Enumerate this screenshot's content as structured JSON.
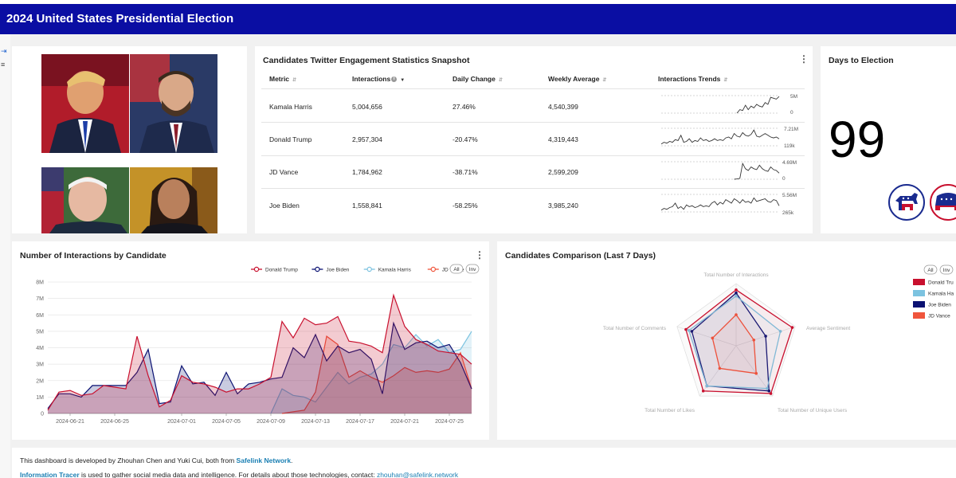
{
  "header": {
    "title": "2024 United States Presidential Election"
  },
  "engagement": {
    "title": "Candidates Twitter Engagement Statistics Snapshot",
    "columns": [
      "Metric",
      "Interactions",
      "Daily Change",
      "Weekly Average",
      "Interactions Trends"
    ],
    "rows": [
      {
        "metric": "Kamala Harris",
        "interactions": "5,004,656",
        "daily_change": "27.46%",
        "weekly_average": "4,540,399",
        "spark_max": "5M",
        "spark_min": "0",
        "trend": [
          0,
          0,
          0,
          0,
          0,
          0,
          0,
          0,
          0,
          0,
          0,
          0,
          0,
          0,
          0,
          0,
          0,
          0,
          0,
          0,
          0,
          0,
          0,
          0,
          0,
          0,
          0,
          0,
          0.2,
          0.15,
          0.45,
          0.2,
          0.4,
          0.3,
          0.5,
          0.4,
          0.35,
          0.6,
          0.5,
          0.9,
          0.85,
          0.8,
          0.95
        ]
      },
      {
        "metric": "Donald Trump",
        "interactions": "2,957,304",
        "daily_change": "-20.47%",
        "weekly_average": "4,319,443",
        "spark_max": "7.21M",
        "spark_min": "119k",
        "trend": [
          0.1,
          0.2,
          0.15,
          0.25,
          0.2,
          0.35,
          0.3,
          0.6,
          0.2,
          0.25,
          0.4,
          0.2,
          0.3,
          0.25,
          0.45,
          0.3,
          0.35,
          0.25,
          0.3,
          0.4,
          0.3,
          0.35,
          0.3,
          0.45,
          0.5,
          0.4,
          0.7,
          0.55,
          0.5,
          0.75,
          0.6,
          0.55,
          0.65,
          0.9,
          0.55,
          0.5,
          0.6,
          0.7,
          0.6,
          0.5,
          0.45,
          0.5,
          0.4
        ]
      },
      {
        "metric": "JD Vance",
        "interactions": "1,784,962",
        "daily_change": "-38.71%",
        "weekly_average": "2,599,209",
        "spark_max": "4.69M",
        "spark_min": "0",
        "trend": [
          0,
          0,
          0,
          0,
          0,
          0,
          0,
          0,
          0,
          0,
          0,
          0,
          0,
          0,
          0,
          0,
          0,
          0,
          0,
          0,
          0,
          0,
          0,
          0,
          0,
          0,
          0,
          0.02,
          0.05,
          0.9,
          0.6,
          0.5,
          0.7,
          0.6,
          0.55,
          0.8,
          0.6,
          0.5,
          0.45,
          0.7,
          0.55,
          0.5,
          0.35
        ]
      },
      {
        "metric": "Joe Biden",
        "interactions": "1,558,841",
        "daily_change": "-58.25%",
        "weekly_average": "3,985,240",
        "spark_max": "5.56M",
        "spark_min": "265k",
        "trend": [
          0.1,
          0.2,
          0.15,
          0.25,
          0.3,
          0.5,
          0.2,
          0.3,
          0.15,
          0.4,
          0.3,
          0.35,
          0.25,
          0.3,
          0.4,
          0.3,
          0.35,
          0.3,
          0.5,
          0.6,
          0.4,
          0.55,
          0.45,
          0.7,
          0.6,
          0.5,
          0.75,
          0.65,
          0.5,
          0.7,
          0.55,
          0.6,
          0.5,
          0.8,
          0.6,
          0.65,
          0.7,
          0.75,
          0.6,
          0.55,
          0.7,
          0.65,
          0.35
        ]
      }
    ]
  },
  "days": {
    "title": "Days to Election",
    "value": "99"
  },
  "line_chart": {
    "title": "Number of Interactions by Candidate",
    "legend_all": "All",
    "legend_inv": "Inv",
    "colors": {
      "Donald Trump": "#c8102e",
      "Joe Biden": "#0a1172",
      "Kamala Harris": "#7cc3e0",
      "JD Vance": "#f0553c"
    }
  },
  "radar_chart": {
    "title": "Candidates Comparison (Last 7 Days)",
    "legend_all": "All",
    "legend_inv": "Inv"
  },
  "chart_data": [
    {
      "type": "area",
      "title": "Number of Interactions by Candidate",
      "x": [
        "2024-06-19",
        "2024-06-20",
        "2024-06-21",
        "2024-06-22",
        "2024-06-23",
        "2024-06-24",
        "2024-06-25",
        "2024-06-26",
        "2024-06-27",
        "2024-06-28",
        "2024-06-29",
        "2024-06-30",
        "2024-07-01",
        "2024-07-02",
        "2024-07-03",
        "2024-07-04",
        "2024-07-05",
        "2024-07-06",
        "2024-07-07",
        "2024-07-08",
        "2024-07-09",
        "2024-07-10",
        "2024-07-11",
        "2024-07-12",
        "2024-07-13",
        "2024-07-14",
        "2024-07-15",
        "2024-07-16",
        "2024-07-17",
        "2024-07-18",
        "2024-07-19",
        "2024-07-20",
        "2024-07-21",
        "2024-07-22",
        "2024-07-23",
        "2024-07-24",
        "2024-07-25",
        "2024-07-26",
        "2024-07-27"
      ],
      "xticks": [
        "2024-06-21",
        "2024-06-25",
        "2024-07-01",
        "2024-07-05",
        "2024-07-09",
        "2024-07-13",
        "2024-07-17",
        "2024-07-21",
        "2024-07-25"
      ],
      "yticks": [
        "0",
        "1M",
        "2M",
        "3M",
        "4M",
        "5M",
        "6M",
        "7M",
        "8M"
      ],
      "ylim": [
        0,
        8000000
      ],
      "series": [
        {
          "name": "Donald Trump",
          "values": [
            200000,
            1300000,
            1400000,
            1100000,
            1200000,
            1700000,
            1600000,
            1500000,
            4700000,
            2300000,
            400000,
            800000,
            2300000,
            1900000,
            1800000,
            1600000,
            1300000,
            1500000,
            1500000,
            1800000,
            2200000,
            5600000,
            4600000,
            5800000,
            5400000,
            5500000,
            5900000,
            4400000,
            4300000,
            4100000,
            3700000,
            7200000,
            5300000,
            4500000,
            4200000,
            3800000,
            3700000,
            3600000,
            3000000
          ]
        },
        {
          "name": "Joe Biden",
          "values": [
            300000,
            1200000,
            1200000,
            1000000,
            1700000,
            1700000,
            1700000,
            1700000,
            2500000,
            3900000,
            600000,
            700000,
            2900000,
            1800000,
            1900000,
            1100000,
            2500000,
            1200000,
            1800000,
            1900000,
            2100000,
            2200000,
            4000000,
            3400000,
            4800000,
            3200000,
            4100000,
            3700000,
            3900000,
            3300000,
            1200000,
            5500000,
            3900000,
            4300000,
            4400000,
            4000000,
            4200000,
            3100000,
            1500000
          ]
        },
        {
          "name": "Kamala Harris",
          "values": [
            0,
            0,
            0,
            0,
            0,
            0,
            0,
            0,
            0,
            0,
            0,
            0,
            0,
            0,
            0,
            0,
            0,
            0,
            0,
            0,
            0,
            1500000,
            1100000,
            1000000,
            700000,
            1600000,
            2500000,
            1800000,
            2200000,
            2400000,
            3000000,
            4200000,
            4000000,
            4800000,
            4100000,
            4500000,
            3700000,
            3900000,
            5000000
          ]
        },
        {
          "name": "JD Vance",
          "values": [
            0,
            0,
            0,
            0,
            0,
            0,
            0,
            0,
            0,
            0,
            0,
            0,
            0,
            0,
            0,
            0,
            0,
            0,
            0,
            0,
            0,
            0,
            100000,
            200000,
            1300000,
            4700000,
            4200000,
            2200000,
            2600000,
            2200000,
            1900000,
            2300000,
            2800000,
            2500000,
            2600000,
            2500000,
            2700000,
            3700000,
            1500000
          ]
        }
      ],
      "legend": [
        "Donald Trump",
        "Joe Biden",
        "Kamala Harris",
        "JD Vance"
      ]
    },
    {
      "type": "radar",
      "title": "Candidates Comparison (Last 7 Days)",
      "axes": [
        "Total Number of Interactions",
        "Average Sentiment",
        "Total Number of Unique Users",
        "Total Number of Likes",
        "Total Number of Comments"
      ],
      "series": [
        {
          "name": "Donald Trump",
          "values": [
            0.9,
            0.95,
            0.95,
            0.9,
            0.85
          ]
        },
        {
          "name": "Kamala Harris",
          "values": [
            0.8,
            0.75,
            0.85,
            0.8,
            0.8
          ]
        },
        {
          "name": "Joe Biden",
          "values": [
            0.85,
            0.5,
            0.9,
            0.8,
            0.75
          ]
        },
        {
          "name": "JD Vance",
          "values": [
            0.5,
            0.3,
            0.55,
            0.45,
            0.4
          ]
        }
      ],
      "legend": [
        "Donald Trump",
        "Kamala Harris",
        "Joe Biden",
        "JD Vance"
      ],
      "legend_display": [
        "Donald Tru",
        "Kamala Ha",
        "Joe Biden",
        "JD Vance"
      ]
    }
  ],
  "footer": {
    "line1_prefix": "This dashboard is developed by Zhouhan Chen and Yuki Cui, both from ",
    "line1_link": "Safelink Network",
    "line1_suffix": ".",
    "line2_link": "Information Tracer",
    "line2_mid": " is used to gather social media data and intelligence. For details about those technologies, contact: ",
    "line2_email": "zhouhan@safelink.network"
  }
}
